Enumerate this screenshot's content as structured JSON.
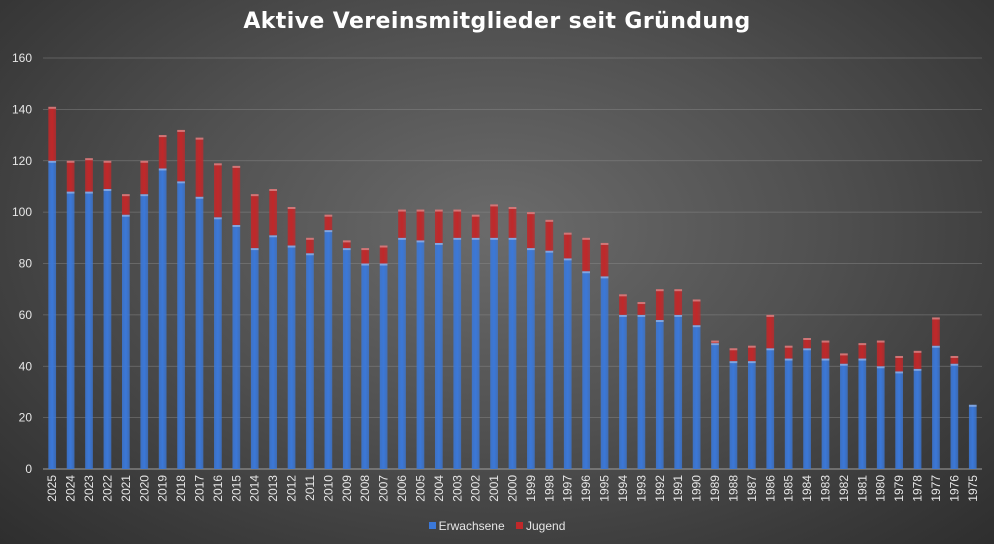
{
  "chart_data": {
    "type": "bar",
    "stacked": true,
    "title": "Aktive Vereinsmitglieder seit Gründung",
    "xlabel": "",
    "ylabel": "",
    "ylim": [
      0,
      160
    ],
    "yticks": [
      0,
      20,
      40,
      60,
      80,
      100,
      120,
      140,
      160
    ],
    "grid": true,
    "legend": "bottom",
    "categories": [
      "2025",
      "2024",
      "2023",
      "2022",
      "2021",
      "2020",
      "2019",
      "2018",
      "2017",
      "2016",
      "2015",
      "2014",
      "2013",
      "2012",
      "2011",
      "2010",
      "2009",
      "2008",
      "2007",
      "2006",
      "2005",
      "2004",
      "2003",
      "2002",
      "2001",
      "2000",
      "1999",
      "1998",
      "1997",
      "1996",
      "1995",
      "1994",
      "1993",
      "1992",
      "1991",
      "1990",
      "1989",
      "1988",
      "1987",
      "1986",
      "1985",
      "1984",
      "1983",
      "1982",
      "1981",
      "1980",
      "1979",
      "1978",
      "1977",
      "1976",
      "1975"
    ],
    "series": [
      {
        "name": "Erwachsene",
        "color": "#3b78d8",
        "values": [
          120,
          108,
          108,
          109,
          99,
          107,
          117,
          112,
          106,
          98,
          95,
          86,
          91,
          87,
          84,
          93,
          86,
          80,
          80,
          90,
          89,
          88,
          90,
          90,
          90,
          90,
          86,
          85,
          82,
          77,
          75,
          60,
          60,
          58,
          60,
          56,
          49,
          42,
          42,
          47,
          43,
          47,
          43,
          41,
          43,
          40,
          38,
          39,
          48,
          41,
          25
        ]
      },
      {
        "name": "Jugend",
        "color": "#c0282a",
        "values": [
          21,
          12,
          13,
          11,
          8,
          13,
          13,
          20,
          23,
          21,
          23,
          21,
          18,
          15,
          6,
          6,
          3,
          6,
          7,
          11,
          12,
          13,
          11,
          9,
          13,
          12,
          14,
          12,
          10,
          13,
          13,
          8,
          5,
          12,
          10,
          10,
          1,
          5,
          6,
          13,
          5,
          4,
          7,
          4,
          6,
          10,
          6,
          7,
          11,
          3,
          0
        ]
      }
    ]
  }
}
